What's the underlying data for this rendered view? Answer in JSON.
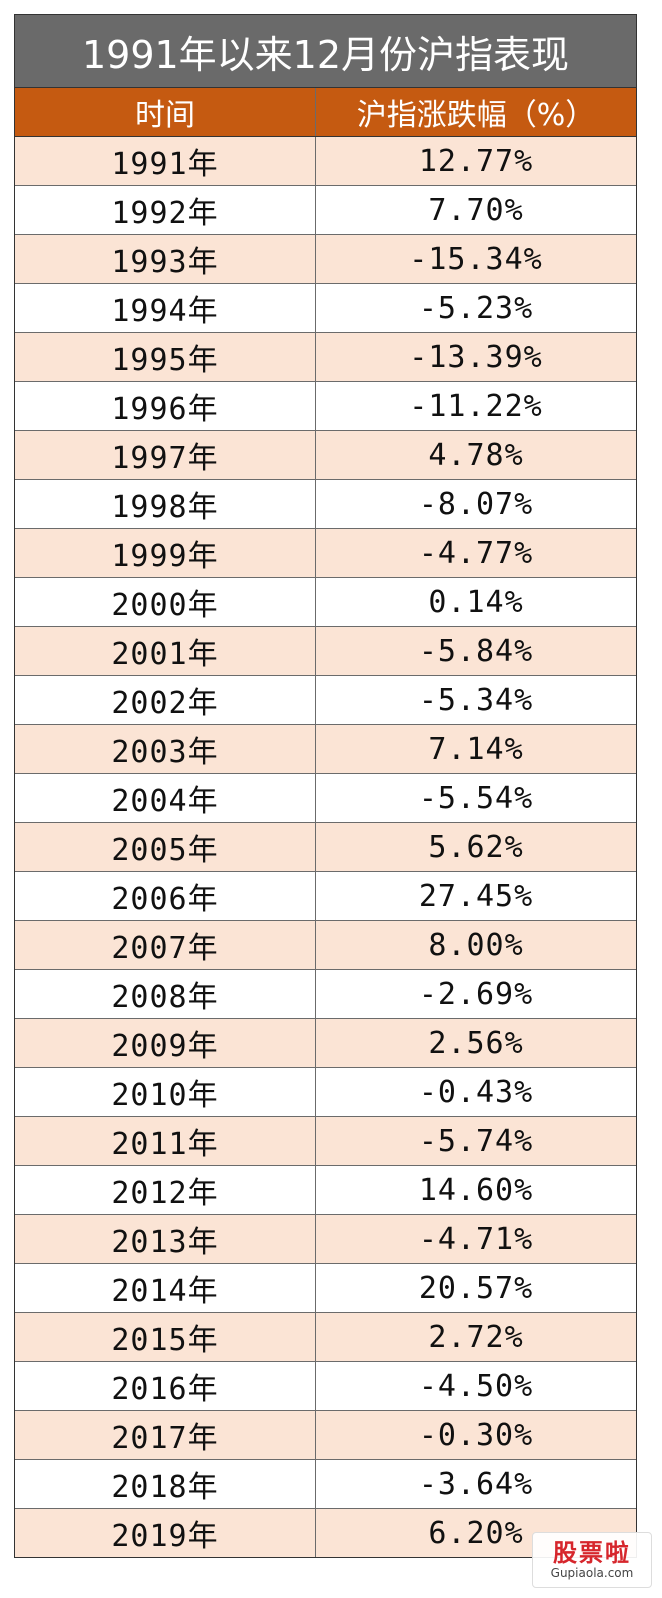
{
  "title": "1991年以来12月份沪指表现",
  "headers": {
    "time": "时间",
    "change": "沪指涨跌幅（%）"
  },
  "colors": {
    "title_bg": "#6a6a6a",
    "header_bg": "#c55a11",
    "band_bg": "#fbe4d5",
    "plain_bg": "#ffffff",
    "logo_red": "#d6262c"
  },
  "rows": [
    {
      "year": "1991年",
      "change": "12.77%"
    },
    {
      "year": "1992年",
      "change": "7.70%"
    },
    {
      "year": "1993年",
      "change": "-15.34%"
    },
    {
      "year": "1994年",
      "change": "-5.23%"
    },
    {
      "year": "1995年",
      "change": "-13.39%"
    },
    {
      "year": "1996年",
      "change": "-11.22%"
    },
    {
      "year": "1997年",
      "change": "4.78%"
    },
    {
      "year": "1998年",
      "change": "-8.07%"
    },
    {
      "year": "1999年",
      "change": "-4.77%"
    },
    {
      "year": "2000年",
      "change": "0.14%"
    },
    {
      "year": "2001年",
      "change": "-5.84%"
    },
    {
      "year": "2002年",
      "change": "-5.34%"
    },
    {
      "year": "2003年",
      "change": "7.14%"
    },
    {
      "year": "2004年",
      "change": "-5.54%"
    },
    {
      "year": "2005年",
      "change": "5.62%"
    },
    {
      "year": "2006年",
      "change": "27.45%"
    },
    {
      "year": "2007年",
      "change": "8.00%"
    },
    {
      "year": "2008年",
      "change": "-2.69%"
    },
    {
      "year": "2009年",
      "change": "2.56%"
    },
    {
      "year": "2010年",
      "change": "-0.43%"
    },
    {
      "year": "2011年",
      "change": "-5.74%"
    },
    {
      "year": "2012年",
      "change": "14.60%"
    },
    {
      "year": "2013年",
      "change": "-4.71%"
    },
    {
      "year": "2014年",
      "change": "20.57%"
    },
    {
      "year": "2015年",
      "change": "2.72%"
    },
    {
      "year": "2016年",
      "change": "-4.50%"
    },
    {
      "year": "2017年",
      "change": "-0.30%"
    },
    {
      "year": "2018年",
      "change": "-3.64%"
    },
    {
      "year": "2019年",
      "change": "6.20%"
    }
  ],
  "logo": {
    "mark": "股票啦",
    "url": "Gupiaola.com"
  }
}
